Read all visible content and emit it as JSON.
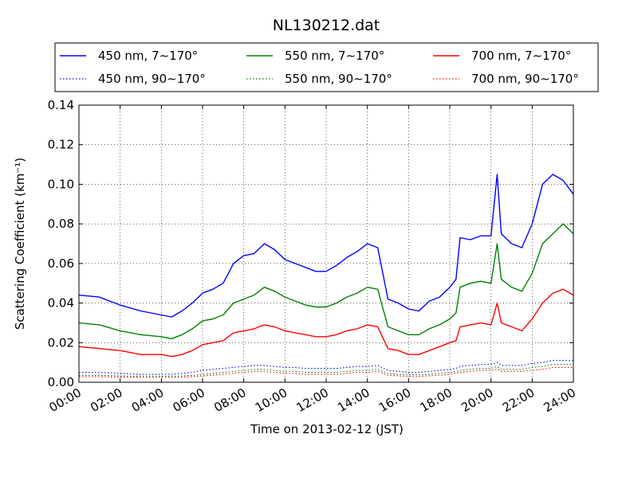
{
  "chart_data": {
    "type": "line",
    "title": "NL130212.dat",
    "xlabel": "Time on 2013-02-12 (JST)",
    "ylabel": "Scattering Coefficient (km⁻¹)",
    "xlim": [
      0,
      24
    ],
    "ylim": [
      0,
      0.14
    ],
    "grid": true,
    "legend_position": "top",
    "x_ticks": [
      {
        "value": 0,
        "label": "00:00"
      },
      {
        "value": 2,
        "label": "02:00"
      },
      {
        "value": 4,
        "label": "04:00"
      },
      {
        "value": 6,
        "label": "06:00"
      },
      {
        "value": 8,
        "label": "08:00"
      },
      {
        "value": 10,
        "label": "10:00"
      },
      {
        "value": 12,
        "label": "12:00"
      },
      {
        "value": 14,
        "label": "14:00"
      },
      {
        "value": 16,
        "label": "16:00"
      },
      {
        "value": 18,
        "label": "18:00"
      },
      {
        "value": 20,
        "label": "20:00"
      },
      {
        "value": 22,
        "label": "22:00"
      },
      {
        "value": 24,
        "label": "24:00"
      }
    ],
    "y_ticks": [
      {
        "value": 0,
        "label": "0.00"
      },
      {
        "value": 0.02,
        "label": "0.02"
      },
      {
        "value": 0.04,
        "label": "0.04"
      },
      {
        "value": 0.06,
        "label": "0.06"
      },
      {
        "value": 0.08,
        "label": "0.08"
      },
      {
        "value": 0.1,
        "label": "0.10"
      },
      {
        "value": 0.12,
        "label": "0.12"
      },
      {
        "value": 0.14,
        "label": "0.14"
      }
    ],
    "x": [
      0,
      1,
      2,
      3,
      4,
      4.5,
      5,
      5.5,
      6,
      6.5,
      7,
      7.5,
      8,
      8.5,
      9,
      9.5,
      10,
      10.5,
      11,
      11.5,
      12,
      12.5,
      13,
      13.5,
      14,
      14.5,
      15,
      15.5,
      16,
      16.5,
      17,
      17.5,
      18,
      18.3,
      18.5,
      19,
      19.5,
      20,
      20.3,
      20.5,
      21,
      21.5,
      22,
      22.5,
      23,
      23.5,
      24
    ],
    "series": [
      {
        "name": "450 nm, 7∼170°",
        "color": "#0000ff",
        "style": "solid",
        "values": [
          0.044,
          0.043,
          0.039,
          0.036,
          0.034,
          0.033,
          0.036,
          0.04,
          0.045,
          0.047,
          0.05,
          0.06,
          0.064,
          0.065,
          0.07,
          0.067,
          0.062,
          0.06,
          0.058,
          0.056,
          0.056,
          0.059,
          0.063,
          0.066,
          0.07,
          0.068,
          0.042,
          0.04,
          0.037,
          0.036,
          0.041,
          0.043,
          0.048,
          0.052,
          0.073,
          0.072,
          0.074,
          0.074,
          0.105,
          0.075,
          0.07,
          0.068,
          0.08,
          0.1,
          0.105,
          0.102,
          0.095
        ]
      },
      {
        "name": "450 nm, 90∼170°",
        "color": "#0000ff",
        "style": "dotted",
        "values": [
          0.005,
          0.005,
          0.0045,
          0.004,
          0.004,
          0.004,
          0.0045,
          0.005,
          0.006,
          0.0065,
          0.007,
          0.0075,
          0.008,
          0.0085,
          0.0085,
          0.008,
          0.0075,
          0.0075,
          0.007,
          0.007,
          0.007,
          0.007,
          0.0075,
          0.008,
          0.008,
          0.0085,
          0.006,
          0.0055,
          0.005,
          0.005,
          0.0055,
          0.006,
          0.0065,
          0.007,
          0.008,
          0.0085,
          0.009,
          0.009,
          0.01,
          0.0085,
          0.0085,
          0.0085,
          0.0095,
          0.01,
          0.011,
          0.011,
          0.011
        ]
      },
      {
        "name": "550 nm, 7∼170°",
        "color": "#008000",
        "style": "solid",
        "values": [
          0.03,
          0.029,
          0.026,
          0.024,
          0.023,
          0.022,
          0.024,
          0.027,
          0.031,
          0.032,
          0.034,
          0.04,
          0.042,
          0.044,
          0.048,
          0.046,
          0.043,
          0.041,
          0.039,
          0.038,
          0.038,
          0.04,
          0.043,
          0.045,
          0.048,
          0.047,
          0.028,
          0.026,
          0.024,
          0.024,
          0.027,
          0.029,
          0.032,
          0.035,
          0.048,
          0.05,
          0.051,
          0.05,
          0.07,
          0.052,
          0.048,
          0.046,
          0.055,
          0.07,
          0.075,
          0.08,
          0.075
        ]
      },
      {
        "name": "550 nm, 90∼170°",
        "color": "#008000",
        "style": "dotted",
        "values": [
          0.0035,
          0.0035,
          0.0032,
          0.003,
          0.003,
          0.003,
          0.0032,
          0.0035,
          0.004,
          0.0045,
          0.005,
          0.0055,
          0.006,
          0.0065,
          0.0065,
          0.006,
          0.0055,
          0.0055,
          0.005,
          0.005,
          0.005,
          0.005,
          0.0055,
          0.006,
          0.006,
          0.0065,
          0.0045,
          0.004,
          0.0038,
          0.0038,
          0.004,
          0.0045,
          0.005,
          0.0055,
          0.006,
          0.0065,
          0.007,
          0.007,
          0.008,
          0.0065,
          0.0065,
          0.0065,
          0.0075,
          0.008,
          0.009,
          0.009,
          0.009
        ]
      },
      {
        "name": "700 nm, 7∼170°",
        "color": "#ff0000",
        "style": "solid",
        "values": [
          0.018,
          0.017,
          0.016,
          0.014,
          0.014,
          0.013,
          0.014,
          0.016,
          0.019,
          0.02,
          0.021,
          0.025,
          0.026,
          0.027,
          0.029,
          0.028,
          0.026,
          0.025,
          0.024,
          0.023,
          0.023,
          0.024,
          0.026,
          0.027,
          0.029,
          0.028,
          0.017,
          0.016,
          0.014,
          0.014,
          0.016,
          0.018,
          0.02,
          0.021,
          0.028,
          0.029,
          0.03,
          0.029,
          0.04,
          0.03,
          0.028,
          0.026,
          0.032,
          0.04,
          0.045,
          0.047,
          0.044
        ]
      },
      {
        "name": "700 nm, 90∼170°",
        "color": "#ff0000",
        "style": "dotted",
        "values": [
          0.0028,
          0.0028,
          0.0026,
          0.0024,
          0.0024,
          0.0024,
          0.0026,
          0.0028,
          0.0032,
          0.0036,
          0.004,
          0.0045,
          0.005,
          0.0055,
          0.0055,
          0.005,
          0.0045,
          0.0045,
          0.004,
          0.004,
          0.004,
          0.004,
          0.0045,
          0.005,
          0.005,
          0.0055,
          0.0036,
          0.0032,
          0.003,
          0.003,
          0.0032,
          0.0036,
          0.004,
          0.0045,
          0.005,
          0.0055,
          0.006,
          0.006,
          0.0065,
          0.0055,
          0.0055,
          0.0055,
          0.006,
          0.0065,
          0.0075,
          0.0075,
          0.0075
        ]
      }
    ]
  }
}
